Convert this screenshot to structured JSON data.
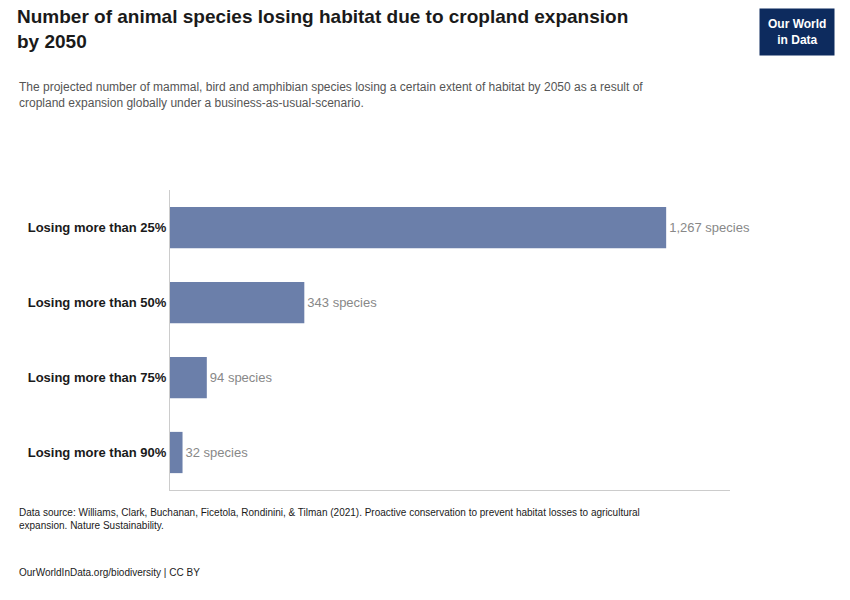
{
  "chart_data": {
    "type": "bar",
    "orientation": "horizontal",
    "title": "Number of animal species losing habitat due to cropland expansion\nby 2050",
    "subtitle": "The projected number of mammal, bird and amphibian species losing a certain extent of habitat by 2050 as a result of\ncropland expansion globally under a business-as-usual-scenario.",
    "categories": [
      "Losing more than 25%",
      "Losing more than 50%",
      "Losing more than 75%",
      "Losing more than 90%"
    ],
    "values": [
      1267,
      343,
      94,
      32
    ],
    "value_labels": [
      "1,267 species",
      "343 species",
      "94 species",
      "32 species"
    ],
    "data_labels": true,
    "color": "#6b7faa",
    "xlim": [
      0,
      1430
    ],
    "xticks": [],
    "tick_labels": "y",
    "grid": false,
    "annotations": [
      "Data source: Williams, Clark, Buchanan, Ficetola, Rondinini, & Tilman (2021). Proactive conservation to prevent habitat losses to agricultural\nexpansion. Nature Sustainability.",
      "OurWorldInData.org/biodiversity | CC BY",
      "Our World\nin Data"
    ]
  }
}
